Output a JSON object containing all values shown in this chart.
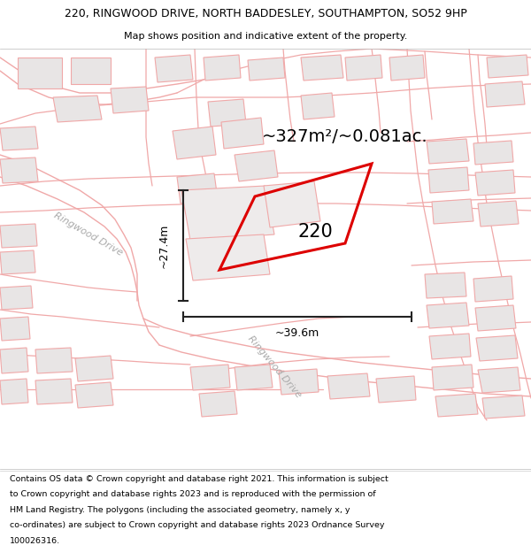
{
  "title_line1": "220, RINGWOOD DRIVE, NORTH BADDESLEY, SOUTHAMPTON, SO52 9HP",
  "title_line2": "Map shows position and indicative extent of the property.",
  "area_text": "~327m²/~0.081ac.",
  "label_220": "220",
  "dim_vertical": "~27.4m",
  "dim_horizontal": "~39.6m",
  "road_label1": "Ringwood Drive",
  "road_label2": "Ringwood Drive",
  "footer_lines": [
    "Contains OS data © Crown copyright and database right 2021. This information is subject",
    "to Crown copyright and database rights 2023 and is reproduced with the permission of",
    "HM Land Registry. The polygons (including the associated geometry, namely x, y",
    "co-ordinates) are subject to Crown copyright and database rights 2023 Ordnance Survey",
    "100026316."
  ],
  "map_bg": "#f7f5f5",
  "block_fill": "#e8e5e5",
  "block_edge": "#f0a8a8",
  "road_line": "#f0a8a8",
  "property_color": "#dd0000",
  "dim_color": "#222222",
  "title_bg": "#ffffff",
  "footer_bg": "#ffffff",
  "road_text_color": "#aaaaaa",
  "title_fontsize": 9,
  "subtitle_fontsize": 8,
  "area_fontsize": 14,
  "label_fontsize": 15,
  "dim_fontsize": 9,
  "road_fontsize": 8,
  "footer_fontsize": 6.8
}
